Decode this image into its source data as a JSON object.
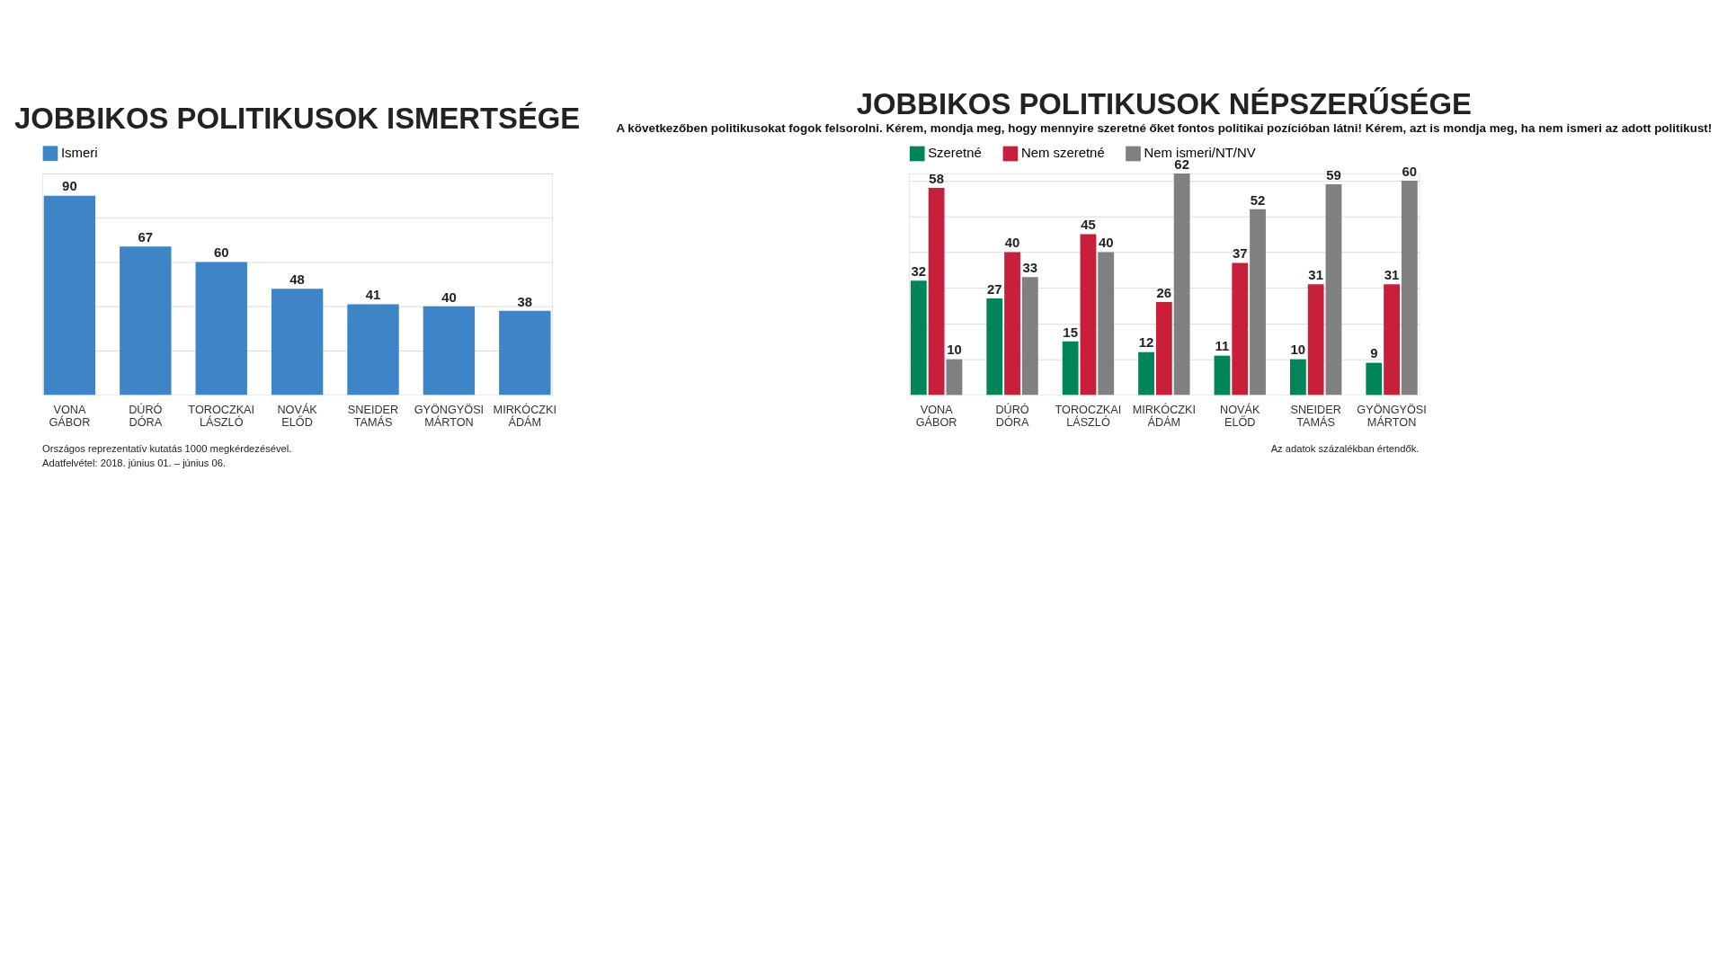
{
  "chart_data": [
    {
      "type": "bar",
      "title": "JOBBIKOS POLITIKUSOK ISMERTSÉGE",
      "categories": [
        "VONA GÁBOR",
        "DÚRÓ DÓRA",
        "TOROCZKAI LÁSZLÓ",
        "NOVÁK ELŐD",
        "SNEIDER TAMÁS",
        "GYÖNGYÖSI MÁRTON",
        "MIRKÓCZKI ÁDÁM"
      ],
      "series": [
        {
          "name": "Ismeri",
          "color": "#3d85c6",
          "values": [
            90,
            67,
            60,
            48,
            41,
            40,
            38
          ]
        }
      ],
      "ylim": [
        0,
        100
      ],
      "yticks": [
        {
          "value": 20,
          "label": null
        },
        {
          "value": 40,
          "label": null
        },
        {
          "value": 60,
          "label": null
        },
        {
          "value": 80,
          "label": null
        },
        {
          "value": 100,
          "label": null
        }
      ],
      "grid": "y",
      "legend": "top",
      "data_labels": true,
      "annotations": [
        "Országos reprezentatív kutatás 1000 megkérdezésével.",
        "Adatfelvétel: 2018. június 01. – június 06."
      ]
    },
    {
      "type": "bar",
      "title": "JOBBIKOS POLITIKUSOK NÉPSZERŰSÉGE",
      "subtitle": "A következőben politikusokat fogok felsorolni. Kérem, mondja meg, hogy mennyire szeretné őket fontos politikai pozícióban látni! Kérem, azt is mondja meg, ha nem ismeri az adott politikust!",
      "categories": [
        "VONA GÁBOR",
        "DÚRÓ DÓRA",
        "TOROCZKAI LÁSZLÓ",
        "MIRKÓCZKI ÁDÁM",
        "NOVÁK ELŐD",
        "SNEIDER TAMÁS",
        "GYÖNGYÖSI MÁRTON"
      ],
      "series": [
        {
          "name": "Szeretné",
          "color": "#00855a",
          "values": [
            32,
            27,
            15,
            12,
            11,
            10,
            9
          ]
        },
        {
          "name": "Nem szeretné",
          "color": "#c8203a",
          "values": [
            58,
            40,
            45,
            26,
            37,
            31,
            31
          ]
        },
        {
          "name": "Nem ismeri/NT/NV",
          "color": "#808080",
          "values": [
            10,
            33,
            40,
            62,
            52,
            59,
            60
          ]
        }
      ],
      "ylim": [
        0,
        62
      ],
      "yticks": [
        {
          "value": 10,
          "label": null
        },
        {
          "value": 20,
          "label": null
        },
        {
          "value": 30,
          "label": null
        },
        {
          "value": 40,
          "label": null
        },
        {
          "value": 50,
          "label": null
        },
        {
          "value": 60,
          "label": null
        }
      ],
      "grid": "y",
      "legend": "top",
      "data_labels": true,
      "annotations": [
        "Az adatok százalékban értendők."
      ]
    }
  ]
}
